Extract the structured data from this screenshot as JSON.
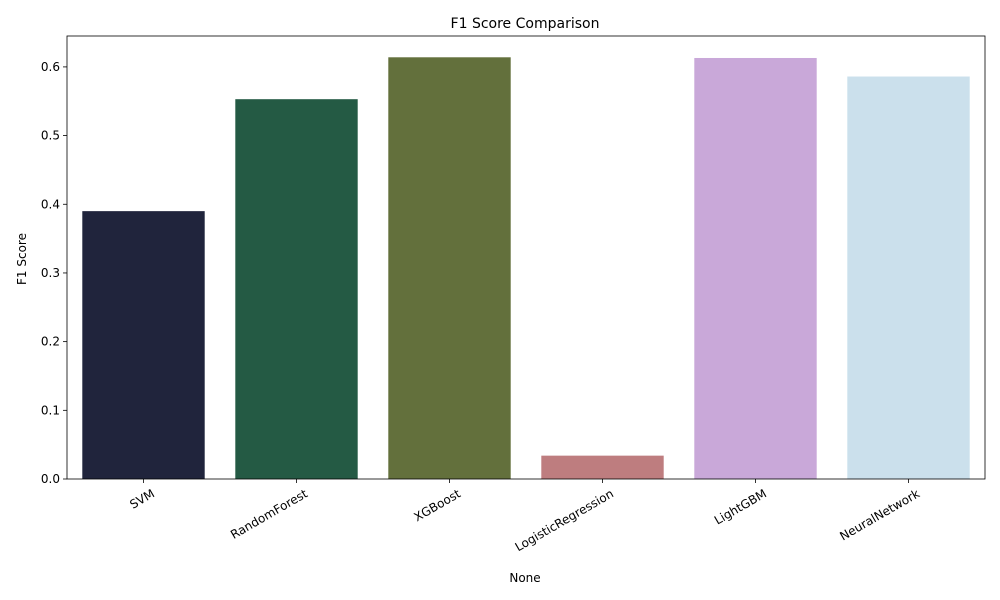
{
  "chart_data": {
    "type": "bar",
    "title": "F1 Score Comparison",
    "xlabel": "None",
    "ylabel": "F1 Score",
    "categories": [
      "SVM",
      "RandomForest",
      "XGBoost",
      "LogisticRegression",
      "LightGBM",
      "NeuralNetwork"
    ],
    "values": [
      0.39,
      0.553,
      0.614,
      0.034,
      0.613,
      0.586
    ],
    "colors": [
      "#20243c",
      "#245a44",
      "#63703c",
      "#be7d7f",
      "#c9a8d9",
      "#cbe0ec"
    ],
    "ylim": [
      0,
      0.645
    ],
    "yticks": [
      0.0,
      0.1,
      0.2,
      0.3,
      0.4,
      0.5,
      0.6
    ],
    "ytick_labels": [
      "0.0",
      "0.1",
      "0.2",
      "0.3",
      "0.4",
      "0.5",
      "0.6"
    ],
    "grid": false,
    "legend": false
  }
}
